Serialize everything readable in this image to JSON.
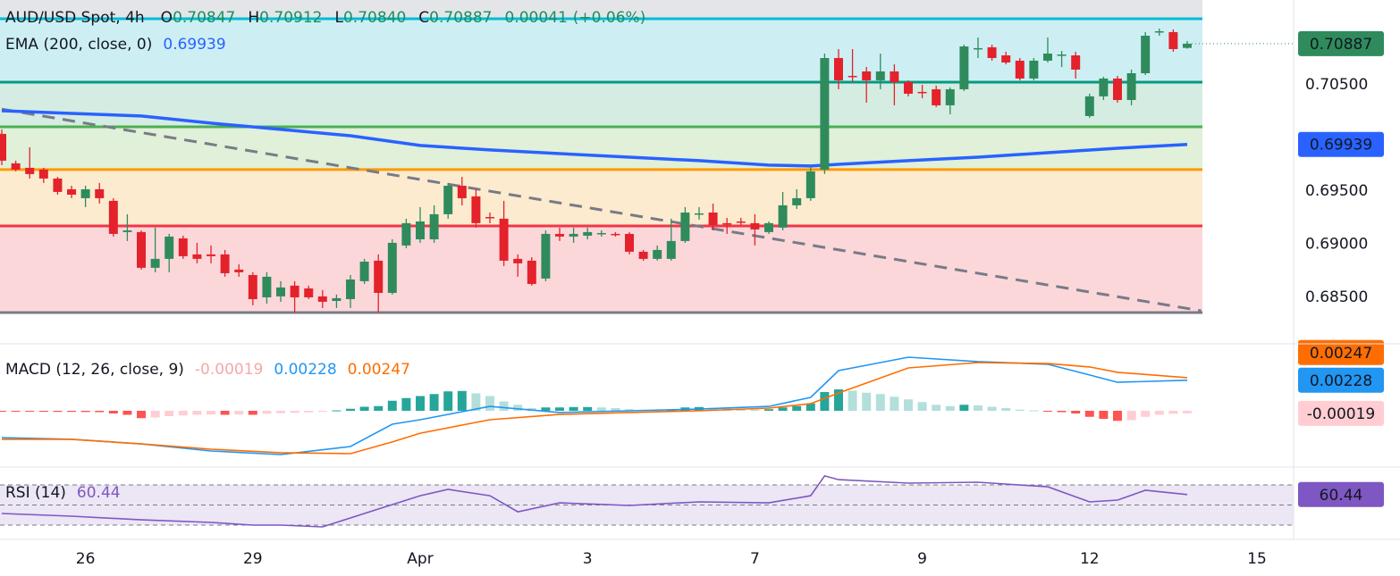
{
  "chart_data": [
    {
      "type": "candlestick",
      "title": "AUD/USD Spot, 4h",
      "ohlc_letters": [
        "O",
        "H",
        "L",
        "C"
      ],
      "header_low_label": "0.70840",
      "change": 0.00041,
      "change_label": "(+0.06%)",
      "up_color": "#2f8b5c",
      "down_color": "#e3222b",
      "header_color": "#1b8f5f",
      "open": [
        0.70038,
        0.69761,
        0.69719,
        0.69702,
        0.69618,
        0.69517,
        0.69433,
        0.69517,
        0.69408,
        0.69114,
        0.69114,
        0.68778,
        0.68862,
        0.69055,
        0.68904,
        0.68904,
        0.68904,
        0.68761,
        0.6871,
        0.685,
        0.68509,
        0.6861,
        0.68584,
        0.68509,
        0.68466,
        0.68483,
        0.68652,
        0.68845,
        0.68542,
        0.68988,
        0.69046,
        0.69046,
        0.69282,
        0.6955,
        0.6945,
        0.69256,
        0.6924,
        0.68862,
        0.68845,
        0.68677,
        0.69097,
        0.69072,
        0.6908,
        0.69097,
        0.69097,
        0.69097,
        0.68929,
        0.68862,
        0.68862,
        0.6903,
        0.69282,
        0.69298,
        0.69198,
        0.69214,
        0.69198,
        0.69114,
        0.69156,
        0.69366,
        0.69433,
        0.69702,
        0.70752,
        0.70584,
        0.70626,
        0.70542,
        0.70626,
        0.70525,
        0.70433,
        0.70458,
        0.70307,
        0.70458,
        0.70836,
        0.70853,
        0.70777,
        0.70727,
        0.70559,
        0.70727,
        0.70777,
        0.70777,
        0.70206,
        0.70391,
        0.70559,
        0.70357,
        0.70609,
        0.70996,
        0.70996,
        0.70847
      ],
      "high": [
        0.7008,
        0.69786,
        0.69912,
        0.69719,
        0.69634,
        0.6955,
        0.6955,
        0.69576,
        0.69433,
        0.69282,
        0.6913,
        0.69156,
        0.69097,
        0.6908,
        0.69013,
        0.68988,
        0.68946,
        0.68811,
        0.68736,
        0.68736,
        0.68652,
        0.68652,
        0.6861,
        0.68568,
        0.68526,
        0.6871,
        0.68862,
        0.68904,
        0.69046,
        0.6924,
        0.69349,
        0.69366,
        0.69576,
        0.69634,
        0.69517,
        0.69298,
        0.69408,
        0.68904,
        0.68878,
        0.6913,
        0.69156,
        0.69156,
        0.69156,
        0.6913,
        0.69114,
        0.69114,
        0.68946,
        0.68988,
        0.6924,
        0.69349,
        0.69349,
        0.69382,
        0.69248,
        0.69248,
        0.69282,
        0.69214,
        0.69492,
        0.69517,
        0.69744,
        0.70794,
        0.70836,
        0.70836,
        0.70668,
        0.70794,
        0.70693,
        0.70542,
        0.705,
        0.70492,
        0.70475,
        0.70878,
        0.70945,
        0.70878,
        0.70811,
        0.70752,
        0.70752,
        0.70945,
        0.70819,
        0.70811,
        0.70416,
        0.70576,
        0.70584,
        0.70643,
        0.70996,
        0.71029,
        0.71021,
        0.70912
      ],
      "low": [
        0.69744,
        0.69685,
        0.69618,
        0.69576,
        0.69466,
        0.69433,
        0.69349,
        0.69382,
        0.69072,
        0.6903,
        0.68761,
        0.68736,
        0.68736,
        0.68862,
        0.6882,
        0.6882,
        0.68694,
        0.68694,
        0.68425,
        0.68441,
        0.68458,
        0.68357,
        0.68483,
        0.68399,
        0.68399,
        0.68399,
        0.68626,
        0.68357,
        0.68526,
        0.68962,
        0.69013,
        0.69013,
        0.6924,
        0.69366,
        0.69156,
        0.69198,
        0.68794,
        0.68694,
        0.6861,
        0.68652,
        0.6903,
        0.69013,
        0.69046,
        0.69072,
        0.69072,
        0.68904,
        0.68845,
        0.68845,
        0.68845,
        0.69013,
        0.69231,
        0.6913,
        0.69097,
        0.69181,
        0.68988,
        0.69097,
        0.6913,
        0.69332,
        0.69408,
        0.6966,
        0.70458,
        0.70525,
        0.70332,
        0.70458,
        0.70307,
        0.70391,
        0.70374,
        0.7029,
        0.70223,
        0.70441,
        0.70752,
        0.70727,
        0.70693,
        0.70542,
        0.70542,
        0.7071,
        0.70668,
        0.70559,
        0.70189,
        0.70357,
        0.70332,
        0.70307,
        0.70592,
        0.70962,
        0.70811,
        0.7084
      ],
      "close": [
        0.69786,
        0.69702,
        0.6966,
        0.69618,
        0.69492,
        0.69466,
        0.69517,
        0.69433,
        0.69097,
        0.6913,
        0.68778,
        0.68862,
        0.69072,
        0.68887,
        0.68862,
        0.68887,
        0.68727,
        0.68736,
        0.68483,
        0.68694,
        0.68593,
        0.685,
        0.685,
        0.68458,
        0.68492,
        0.68668,
        0.68836,
        0.68542,
        0.69013,
        0.69198,
        0.69214,
        0.69282,
        0.6955,
        0.69433,
        0.69198,
        0.69248,
        0.68845,
        0.6882,
        0.68626,
        0.69097,
        0.69072,
        0.69097,
        0.69114,
        0.69105,
        0.6909,
        0.68929,
        0.68862,
        0.68946,
        0.6903,
        0.69298,
        0.6929,
        0.69181,
        0.6919,
        0.69205,
        0.69139,
        0.69198,
        0.69366,
        0.69433,
        0.69685,
        0.70752,
        0.70542,
        0.70576,
        0.70542,
        0.70626,
        0.70525,
        0.70416,
        0.70425,
        0.70307,
        0.70458,
        0.70861,
        0.70845,
        0.70752,
        0.7071,
        0.70559,
        0.70727,
        0.70794,
        0.70785,
        0.70643,
        0.70391,
        0.70559,
        0.70357,
        0.70609,
        0.70962,
        0.71004,
        0.70836,
        0.70887
      ],
      "xlim": [
        -0.13,
        92.63
      ],
      "xticks": [
        {
          "value": 6,
          "label": "26"
        },
        {
          "value": 18,
          "label": "29"
        },
        {
          "value": 30,
          "label": "Apr"
        },
        {
          "value": 42,
          "label": "3"
        },
        {
          "value": 54,
          "label": "7"
        },
        {
          "value": 66,
          "label": "9"
        },
        {
          "value": 78,
          "label": "12"
        },
        {
          "value": 90,
          "label": "15"
        }
      ],
      "ylim": [
        0.6834,
        0.71298
      ],
      "yticks": [
        {
          "value": 0.685,
          "label": "0.68500"
        },
        {
          "value": 0.69,
          "label": "0.69000"
        },
        {
          "value": 0.695,
          "label": "0.69500"
        },
        {
          "value": 0.705,
          "label": "0.70500"
        }
      ],
      "ema": {
        "name": "EMA (200, close, 0)",
        "color": "#2962ff",
        "x": [
          0,
          5,
          10,
          15,
          20,
          25,
          30,
          35,
          40,
          45,
          50,
          55,
          58,
          60,
          65,
          70,
          75,
          80,
          85
        ],
        "values": [
          0.70256,
          0.70231,
          0.70206,
          0.70139,
          0.7008,
          0.70021,
          0.69929,
          0.69887,
          0.69853,
          0.69819,
          0.69786,
          0.69744,
          0.69736,
          0.69752,
          0.69786,
          0.69819,
          0.69861,
          0.69903,
          0.69939
        ]
      },
      "trendline": {
        "color": "#787b86",
        "x": [
          0,
          86
        ],
        "values": [
          0.70271,
          0.68374
        ]
      },
      "top_fill": "#e4e5e9",
      "levels": [
        {
          "value": 0.71122,
          "color": "#00bcd4",
          "fill": "#cdeff3"
        },
        {
          "value": 0.70525,
          "color": "#089981",
          "fill": "#d5ece2"
        },
        {
          "value": 0.70105,
          "color": "#4caf50",
          "fill": "#e0f0d9"
        },
        {
          "value": 0.69702,
          "color": "#ff9800",
          "fill": "#fdebcf"
        },
        {
          "value": 0.69172,
          "color": "#f23645",
          "fill": "#fcd7da"
        },
        {
          "value": 0.68357,
          "color": "#787b86"
        }
      ]
    },
    {
      "type": "macd",
      "name": "MACD (12, 26, close, 9)",
      "histogram": [
        -5e-05,
        -6e-05,
        -6e-05,
        -7e-05,
        -8e-05,
        -8e-05,
        -9e-05,
        -0.0001,
        -0.0002,
        -0.0003,
        -0.00055,
        -0.0005,
        -0.0004,
        -0.00035,
        -0.0003,
        -0.00028,
        -0.0003,
        -0.00028,
        -0.0003,
        -0.00022,
        -0.00018,
        -0.00015,
        -0.00012,
        -8e-05,
        3e-05,
        0.00015,
        0.0003,
        0.00035,
        0.00075,
        0.00095,
        0.0011,
        0.00125,
        0.00145,
        0.00148,
        0.0013,
        0.0011,
        0.0007,
        0.00045,
        0.0002,
        0.00025,
        0.00025,
        0.00028,
        0.00028,
        0.00025,
        0.0002,
        0.00012,
        5e-05,
        3e-05,
        0.0001,
        0.00025,
        0.00028,
        0.00022,
        0.00018,
        0.00015,
        0.0001,
        0.00012,
        0.00025,
        0.00035,
        0.00055,
        0.0014,
        0.0016,
        0.0015,
        0.00135,
        0.00125,
        0.00105,
        0.00085,
        0.00065,
        0.00045,
        0.00035,
        0.00045,
        0.0004,
        0.0003,
        0.0002,
        8e-05,
        3e-05,
        -5e-05,
        -0.0001,
        -0.0002,
        -0.00045,
        -0.0006,
        -0.00075,
        -0.0007,
        -0.00045,
        -0.0003,
        -0.00022,
        -0.00019
      ],
      "hist_colors": {
        "up_strong": "#26a69a",
        "up_weak": "#b2dfdb",
        "down_strong": "#ff5252",
        "down_weak": "#ffcdd2"
      },
      "hist_label_color": "#f4a9a9",
      "series": [
        {
          "color": "#2196f3",
          "x": [
            0,
            5,
            10,
            15,
            20,
            25,
            28,
            30,
            35,
            40,
            45,
            50,
            55,
            58,
            60,
            65,
            70,
            75,
            78,
            80,
            85
          ],
          "values": [
            -0.002,
            -0.00213,
            -0.00247,
            -0.003,
            -0.00327,
            -0.00267,
            -0.001,
            -0.00067,
            0.00033,
            -0.00013,
            0,
            0.00013,
            0.00033,
            0.001,
            0.003,
            0.004,
            0.00367,
            0.00347,
            0.00267,
            0.00213,
            0.00228
          ]
        },
        {
          "color": "#ff6d00",
          "x": [
            0,
            5,
            10,
            15,
            20,
            25,
            28,
            30,
            35,
            40,
            45,
            50,
            55,
            58,
            60,
            65,
            70,
            75,
            78,
            80,
            85
          ],
          "values": [
            -0.00213,
            -0.00213,
            -0.00247,
            -0.00287,
            -0.00313,
            -0.0032,
            -0.00233,
            -0.00167,
            -0.00067,
            -0.00027,
            -0.00013,
            0,
            0.0002,
            0.00053,
            0.00133,
            0.0032,
            0.0036,
            0.00353,
            0.00327,
            0.00287,
            0.00247
          ]
        }
      ],
      "ylim": [
        -0.004,
        0.005
      ]
    },
    {
      "type": "line",
      "name": "RSI (14)",
      "color": "#7e57c2",
      "band_fill": "#ece6f5",
      "x": [
        0,
        5,
        10,
        15,
        18,
        20,
        23,
        25,
        27,
        30,
        32,
        35,
        37,
        40,
        45,
        50,
        55,
        58,
        59,
        60,
        65,
        70,
        75,
        78,
        80,
        82,
        85
      ],
      "values": [
        41.6,
        38.9,
        35.3,
        32.7,
        30,
        30,
        28.2,
        37.1,
        46,
        59.3,
        65.6,
        59.3,
        43.3,
        52.2,
        49.6,
        53.1,
        52.2,
        59.3,
        79,
        75.3,
        71.8,
        72.7,
        68.2,
        53.1,
        54.9,
        64.7,
        60.44
      ],
      "levels": [
        30,
        50,
        70
      ],
      "ylim": [
        14.9,
        81.6
      ]
    }
  ]
}
